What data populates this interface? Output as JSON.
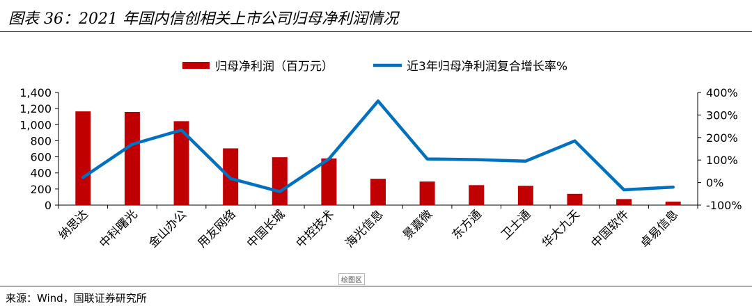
{
  "header": {
    "title": "图表 36：2021 年国内信创相关上市公司归母净利润情况"
  },
  "footer": {
    "source": "来源：Wind，国联证券研究所",
    "plot_area_tag": "绘图区"
  },
  "chart_data": {
    "type": "bar+line",
    "title": "图表 36：2021 年国内信创相关上市公司归母净利润情况",
    "categories": [
      "纳思达",
      "中科曙光",
      "金山办公",
      "用友网络",
      "中国长城",
      "中控技术",
      "海光信息",
      "景嘉微",
      "东方通",
      "卫士通",
      "华大九天",
      "中国软件",
      "卓易信息"
    ],
    "series": [
      {
        "name": "归母净利润（百万元）",
        "type": "bar",
        "axis": "left",
        "color": "#c00000",
        "values": [
          1165,
          1158,
          1043,
          705,
          595,
          580,
          327,
          293,
          248,
          240,
          140,
          75,
          43
        ]
      },
      {
        "name": "近3年归母净利润复合增长率%",
        "type": "line",
        "axis": "right",
        "color": "#0070c0",
        "values": [
          23,
          170,
          233,
          18,
          -40,
          105,
          362,
          105,
          102,
          95,
          185,
          -32,
          -20
        ]
      }
    ],
    "y_left": {
      "min": 0,
      "max": 1400,
      "step": 200,
      "tick_labels": [
        "0",
        "200",
        "400",
        "600",
        "800",
        "1,000",
        "1,200",
        "1,400"
      ]
    },
    "y_right": {
      "min": -100,
      "max": 400,
      "step": 100,
      "tick_labels": [
        "-100%",
        "0%",
        "100%",
        "200%",
        "300%",
        "400%"
      ]
    },
    "legend_position": "top-center",
    "grid": false
  }
}
